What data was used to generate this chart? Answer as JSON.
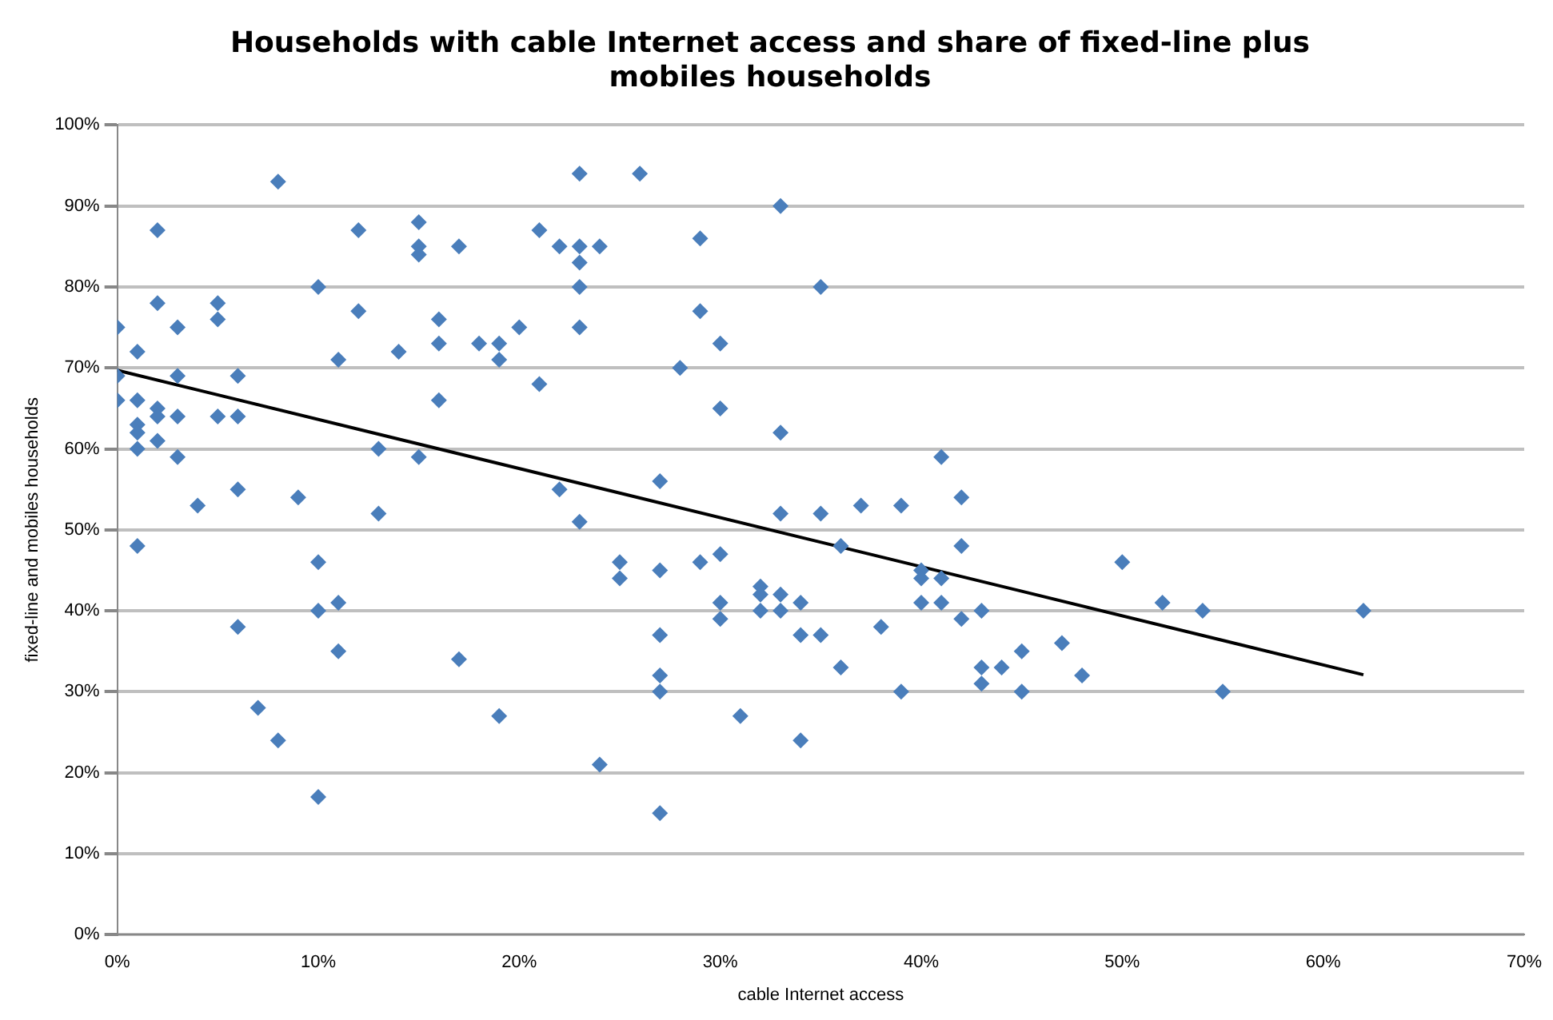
{
  "chart_data": {
    "type": "scatter",
    "title": "Households with cable Internet access and share of fixed-line plus mobiles households",
    "xlabel": "cable Internet access",
    "ylabel": "fixed-line and mobiles households",
    "xlim": [
      0,
      70
    ],
    "xticks": [
      {
        "value": 0,
        "label": "0%"
      },
      {
        "value": 10,
        "label": "10%"
      },
      {
        "value": 20,
        "label": "20%"
      },
      {
        "value": 30,
        "label": "30%"
      },
      {
        "value": 40,
        "label": "40%"
      },
      {
        "value": 50,
        "label": "50%"
      },
      {
        "value": 60,
        "label": "60%"
      },
      {
        "value": 70,
        "label": "70%"
      }
    ],
    "ylim": [
      0,
      100
    ],
    "yticks": [
      {
        "value": 0,
        "label": "0%"
      },
      {
        "value": 10,
        "label": "10%"
      },
      {
        "value": 20,
        "label": "20%"
      },
      {
        "value": 30,
        "label": "30%"
      },
      {
        "value": 40,
        "label": "40%"
      },
      {
        "value": 50,
        "label": "50%"
      },
      {
        "value": 60,
        "label": "60%"
      },
      {
        "value": 70,
        "label": "70%"
      },
      {
        "value": 80,
        "label": "80%"
      },
      {
        "value": 90,
        "label": "90%"
      },
      {
        "value": 100,
        "label": "100%"
      }
    ],
    "grid": "y",
    "legend": false,
    "marker": "diamond",
    "series": [
      {
        "color": "#4a7ebb",
        "x": [
          0,
          0,
          0,
          1,
          1,
          1,
          1,
          1,
          1,
          2,
          2,
          2,
          2,
          2,
          3,
          3,
          3,
          3,
          4,
          5,
          5,
          5,
          6,
          6,
          6,
          6,
          7,
          8,
          8,
          9,
          10,
          10,
          10,
          10,
          11,
          11,
          11,
          12,
          12,
          13,
          13,
          14,
          15,
          15,
          15,
          15,
          16,
          16,
          16,
          17,
          17,
          18,
          19,
          19,
          19,
          20,
          21,
          21,
          22,
          22,
          23,
          23,
          23,
          23,
          23,
          23,
          24,
          24,
          25,
          25,
          26,
          27,
          27,
          27,
          27,
          27,
          27,
          28,
          29,
          29,
          29,
          30,
          30,
          30,
          30,
          30,
          31,
          32,
          32,
          32,
          33,
          33,
          33,
          33,
          33,
          34,
          34,
          34,
          35,
          35,
          35,
          36,
          36,
          37,
          38,
          39,
          39,
          40,
          40,
          40,
          41,
          41,
          41,
          42,
          42,
          42,
          43,
          43,
          43,
          44,
          45,
          45,
          47,
          48,
          50,
          52,
          54,
          55,
          62
        ],
        "values": [
          75,
          69,
          66,
          72,
          66,
          63,
          62,
          60,
          48,
          87,
          78,
          65,
          64,
          61,
          75,
          69,
          64,
          59,
          53,
          78,
          76,
          64,
          69,
          64,
          55,
          38,
          28,
          93,
          24,
          54,
          80,
          46,
          40,
          17,
          71,
          41,
          35,
          87,
          77,
          60,
          52,
          72,
          88,
          85,
          84,
          59,
          76,
          73,
          66,
          85,
          34,
          73,
          73,
          71,
          27,
          75,
          87,
          68,
          85,
          55,
          94,
          85,
          83,
          80,
          75,
          51,
          85,
          21,
          46,
          44,
          94,
          56,
          45,
          37,
          32,
          30,
          15,
          70,
          86,
          77,
          46,
          73,
          65,
          47,
          41,
          39,
          27,
          43,
          42,
          40,
          90,
          62,
          52,
          42,
          40,
          41,
          37,
          24,
          80,
          52,
          37,
          48,
          33,
          53,
          38,
          53,
          30,
          45,
          44,
          41,
          59,
          44,
          41,
          54,
          48,
          39,
          40,
          33,
          31,
          33,
          35,
          30,
          36,
          32,
          46,
          41,
          40,
          30,
          40
        ]
      },
      {
        "type": "line",
        "color": "#000000",
        "marker": "none",
        "line_style": "solid",
        "x": [
          0,
          62
        ],
        "values": [
          69.7,
          32.1
        ]
      }
    ]
  }
}
